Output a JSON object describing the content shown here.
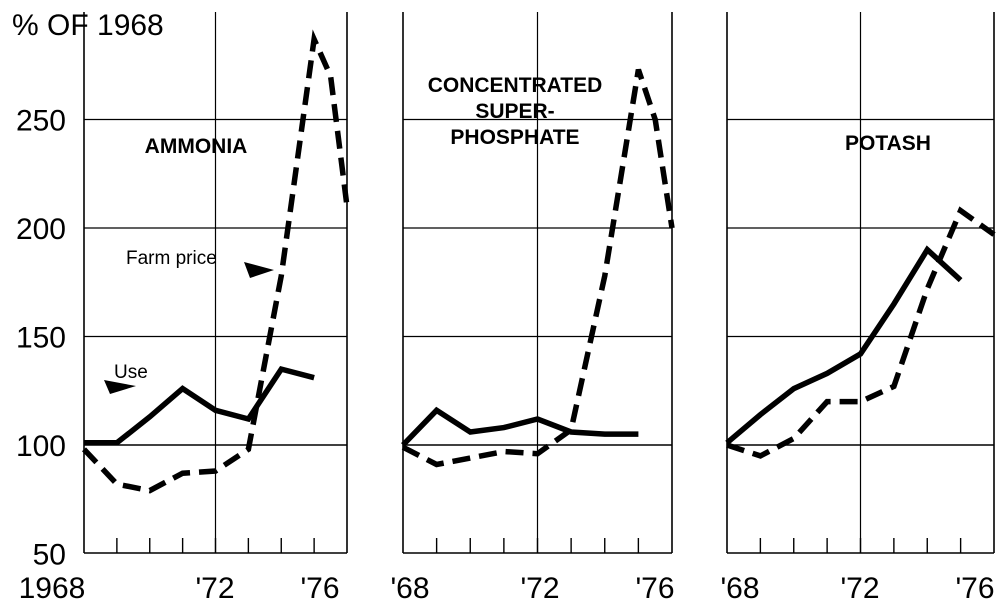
{
  "chart_data": {
    "type": "line",
    "ylabel": "% OF 1968",
    "ylim": [
      50,
      290
    ],
    "yticks": [
      50,
      100,
      150,
      200,
      250
    ],
    "xlim": [
      1968,
      1976
    ],
    "grid": true,
    "panels": [
      {
        "title_lines": [
          "AMMONIA"
        ],
        "xtick_labels": [
          "1968",
          "'72",
          "'76"
        ],
        "annotations": [
          "Farm price",
          "Use"
        ],
        "series": [
          {
            "name": "Use",
            "style": "solid",
            "x": [
              1968,
              1969,
              1970,
              1971,
              1972,
              1973,
              1974,
              1975
            ],
            "y": [
              101,
              101,
              113,
              126,
              116,
              112,
              135,
              131
            ]
          },
          {
            "name": "Farm price",
            "style": "dashed",
            "x": [
              1968,
              1969,
              1970,
              1971,
              1972,
              1973,
              1974,
              1975,
              1975.5,
              1976
            ],
            "y": [
              98,
              82,
              79,
              87,
              88,
              98,
              178,
              287,
              270,
              210
            ]
          }
        ]
      },
      {
        "title_lines": [
          "CONCENTRATED",
          "SUPER-",
          "PHOSPHATE"
        ],
        "xtick_labels": [
          "'68",
          "'72",
          "'76"
        ],
        "annotations": [],
        "series": [
          {
            "name": "Use",
            "style": "solid",
            "x": [
              1968,
              1969,
              1970,
              1971,
              1972,
              1973,
              1974,
              1975
            ],
            "y": [
              100,
              116,
              106,
              108,
              112,
              106,
              105,
              105
            ]
          },
          {
            "name": "Farm price",
            "style": "dashed",
            "x": [
              1968,
              1969,
              1970,
              1971,
              1972,
              1973,
              1974,
              1975,
              1975.5,
              1976
            ],
            "y": [
              99,
              91,
              94,
              97,
              96,
              107,
              178,
              273,
              250,
              200
            ]
          }
        ]
      },
      {
        "title_lines": [
          "POTASH"
        ],
        "xtick_labels": [
          "'68",
          "'72",
          "'76"
        ],
        "annotations": [],
        "series": [
          {
            "name": "Use",
            "style": "solid",
            "x": [
              1968,
              1969,
              1970,
              1971,
              1972,
              1973,
              1974,
              1975
            ],
            "y": [
              101,
              114,
              126,
              133,
              142,
              165,
              190,
              176
            ]
          },
          {
            "name": "Farm price",
            "style": "dashed",
            "x": [
              1968,
              1969,
              1970,
              1971,
              1972,
              1973,
              1974,
              1975,
              1976
            ],
            "y": [
              100,
              95,
              103,
              120,
              120,
              127,
              172,
              208,
              197
            ]
          }
        ]
      }
    ]
  }
}
